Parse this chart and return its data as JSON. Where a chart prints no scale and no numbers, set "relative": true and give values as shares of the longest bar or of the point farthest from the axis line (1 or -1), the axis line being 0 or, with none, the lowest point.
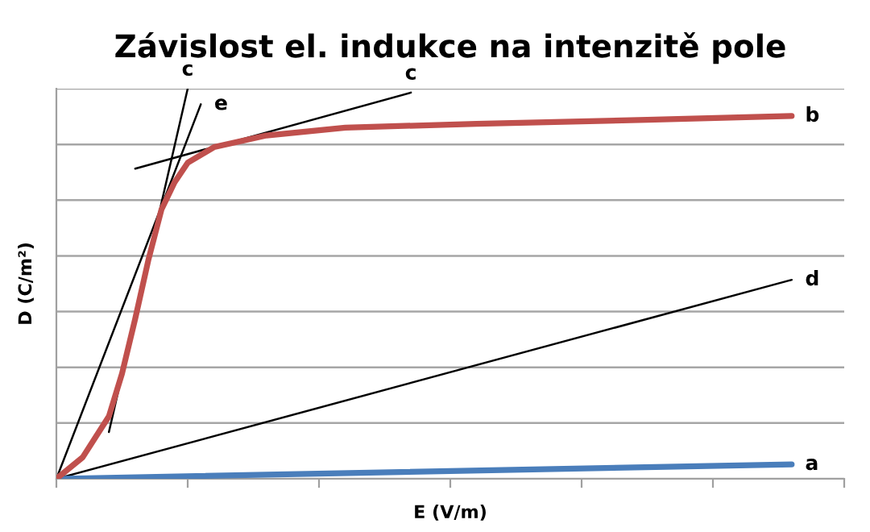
{
  "chart_data": {
    "type": "line",
    "title": "Závislost el. indukce na intenzitě pole",
    "xlabel": "E (V/m)",
    "ylabel": "D (C/m²)",
    "relative": true,
    "grid": "y",
    "marker": "none",
    "line_style": "solid",
    "categories": [
      null,
      null,
      null,
      null,
      null,
      null,
      null,
      null,
      null,
      null,
      null,
      null,
      null,
      null,
      null,
      null,
      null,
      null,
      null,
      null,
      null,
      null,
      null,
      null,
      null,
      null,
      null,
      null,
      null,
      null,
      null,
      null,
      null,
      null,
      null,
      null,
      null,
      null,
      null,
      null,
      null,
      null,
      null,
      null,
      null,
      null,
      null,
      null,
      null,
      null,
      null,
      null,
      null,
      null,
      null,
      null,
      null,
      null,
      null,
      null,
      null
    ],
    "series": [
      {
        "name": "a",
        "color": "#4a7ebb",
        "values": [
          0,
          null,
          null,
          null,
          null,
          null,
          null,
          null,
          null,
          null,
          null,
          null,
          null,
          null,
          null,
          null,
          null,
          null,
          null,
          null,
          null,
          null,
          null,
          null,
          null,
          null,
          null,
          null,
          null,
          null,
          null,
          null,
          null,
          null,
          null,
          null,
          null,
          null,
          null,
          null,
          null,
          null,
          null,
          null,
          null,
          null,
          null,
          null,
          null,
          null,
          null,
          null,
          null,
          null,
          null,
          null,
          0.037,
          null,
          null,
          null,
          null
        ]
      },
      {
        "name": "b",
        "color": "#c0504d",
        "values": [
          0,
          null,
          0.055,
          null,
          0.16,
          0.27,
          0.41,
          0.56,
          0.69,
          0.76,
          0.81,
          null,
          0.85,
          null,
          null,
          null,
          0.88,
          null,
          null,
          null,
          null,
          null,
          0.9,
          null,
          null,
          null,
          null,
          null,
          null,
          null,
          null,
          null,
          0.91,
          null,
          null,
          null,
          null,
          null,
          null,
          null,
          null,
          null,
          null,
          null,
          null,
          0.92,
          null,
          null,
          null,
          null,
          null,
          null,
          null,
          null,
          null,
          null,
          0.93,
          null,
          null,
          null,
          null
        ]
      },
      {
        "name": "c",
        "color": "#000000",
        "values": [
          null,
          null,
          null,
          null,
          0.12,
          null,
          null,
          null,
          null,
          null,
          1.0,
          null,
          null,
          null,
          null,
          null,
          null,
          null,
          null,
          null,
          null,
          null,
          null,
          null,
          null,
          null,
          null,
          null,
          null,
          null,
          null,
          null,
          null,
          null,
          null,
          null,
          null,
          null,
          null,
          null,
          null,
          null,
          null,
          null,
          null,
          null,
          null,
          null,
          null,
          null,
          null,
          null,
          null,
          null,
          null,
          null,
          null,
          null,
          null,
          null,
          null
        ]
      },
      {
        "name": "e",
        "color": "#000000",
        "values": [
          0,
          null,
          null,
          null,
          null,
          null,
          null,
          null,
          null,
          null,
          null,
          0.96,
          null,
          null,
          null,
          null,
          null,
          null,
          null,
          null,
          null,
          null,
          null,
          null,
          null,
          null,
          null,
          null,
          null,
          null,
          null,
          null,
          null,
          null,
          null,
          null,
          null,
          null,
          null,
          null,
          null,
          null,
          null,
          null,
          null,
          null,
          null,
          null,
          null,
          null,
          null,
          null,
          null,
          null,
          null,
          null,
          null,
          null,
          null,
          null,
          null
        ]
      },
      {
        "name": "c",
        "color": "#000000",
        "values": [
          null,
          null,
          null,
          null,
          null,
          null,
          0.795,
          null,
          null,
          null,
          null,
          null,
          null,
          null,
          null,
          null,
          null,
          null,
          null,
          null,
          null,
          null,
          null,
          null,
          null,
          null,
          null,
          0.99,
          null,
          null,
          null,
          null,
          null,
          null,
          null,
          null,
          null,
          null,
          null,
          null,
          null,
          null,
          null,
          null,
          null,
          null,
          null,
          null,
          null,
          null,
          null,
          null,
          null,
          null,
          null,
          null,
          null,
          null,
          null,
          null,
          null
        ]
      },
      {
        "name": "d",
        "color": "#000000",
        "values": [
          0,
          null,
          null,
          null,
          null,
          null,
          null,
          null,
          null,
          null,
          null,
          null,
          null,
          null,
          null,
          null,
          null,
          null,
          null,
          null,
          null,
          null,
          null,
          null,
          null,
          null,
          null,
          null,
          null,
          null,
          null,
          null,
          null,
          null,
          null,
          null,
          null,
          null,
          null,
          null,
          null,
          null,
          null,
          null,
          null,
          null,
          null,
          null,
          null,
          null,
          null,
          null,
          null,
          null,
          null,
          null,
          0.51,
          null,
          null,
          null,
          null
        ]
      }
    ]
  }
}
